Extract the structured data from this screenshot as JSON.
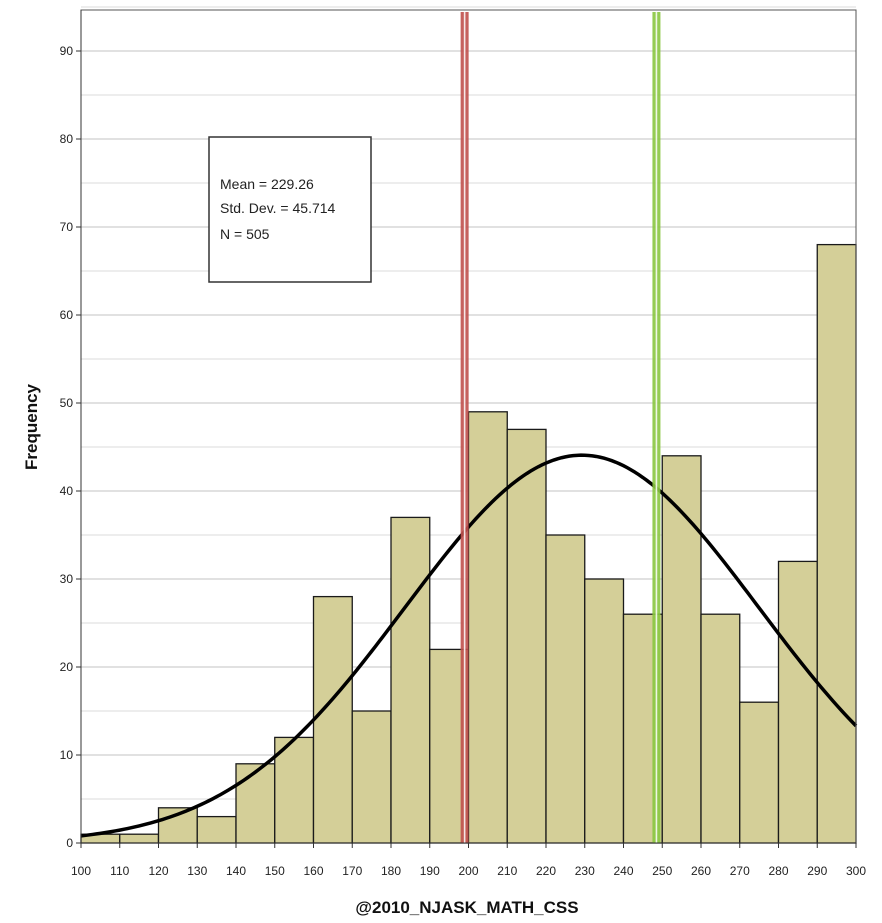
{
  "chart_data": {
    "type": "bar",
    "xlabel": "@2010_NJASK_MATH_CSS",
    "ylabel": "Frequency",
    "xlim": [
      100,
      300
    ],
    "ylim": [
      0,
      95
    ],
    "bin_width": 10,
    "bins": [
      {
        "start": 100,
        "count": 1
      },
      {
        "start": 110,
        "count": 1
      },
      {
        "start": 120,
        "count": 4
      },
      {
        "start": 130,
        "count": 3
      },
      {
        "start": 140,
        "count": 9
      },
      {
        "start": 150,
        "count": 12
      },
      {
        "start": 160,
        "count": 28
      },
      {
        "start": 170,
        "count": 15
      },
      {
        "start": 180,
        "count": 37
      },
      {
        "start": 190,
        "count": 22
      },
      {
        "start": 200,
        "count": 49
      },
      {
        "start": 210,
        "count": 47
      },
      {
        "start": 220,
        "count": 35
      },
      {
        "start": 230,
        "count": 30
      },
      {
        "start": 240,
        "count": 26
      },
      {
        "start": 250,
        "count": 44
      },
      {
        "start": 260,
        "count": 26
      },
      {
        "start": 270,
        "count": 16
      },
      {
        "start": 280,
        "count": 32
      },
      {
        "start": 290,
        "count": 68
      }
    ],
    "x_ticks": [
      "100",
      "110",
      "120",
      "130",
      "140",
      "150",
      "160",
      "170",
      "180",
      "190",
      "200",
      "210",
      "220",
      "230",
      "240",
      "250",
      "260",
      "270",
      "280",
      "290",
      "300"
    ],
    "y_ticks": [
      "0",
      "10",
      "20",
      "30",
      "40",
      "50",
      "60",
      "70",
      "80",
      "90"
    ],
    "stats": {
      "mean_label": "Mean = 229.26",
      "sd_label": "Std. Dev. = 45.714",
      "n_label": "N = 505",
      "mean": 229.26,
      "sd": 45.714,
      "n": 505
    },
    "reference_lines": [
      {
        "x": 199,
        "color": "#c0504d"
      },
      {
        "x": 248.5,
        "color": "#8ac640"
      }
    ],
    "normal_curve": true,
    "grid": true,
    "colors": {
      "bar_fill": "#d4cf98",
      "bar_stroke": "#1a1a1a",
      "curve": "#000000",
      "grid": "#cfcfcf",
      "stats_box_border": "#333333"
    }
  }
}
